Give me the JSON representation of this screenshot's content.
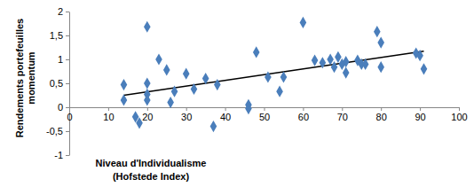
{
  "chart_data": {
    "type": "scatter",
    "xlabel": [
      "Niveau d'Individualisme",
      "(Hofstede Index)"
    ],
    "ylabel": [
      "Rendements portefeuilles",
      "momentum"
    ],
    "x": [
      14,
      14,
      17,
      18,
      20,
      20,
      20,
      20,
      23,
      25,
      26,
      27,
      30,
      32,
      35,
      37,
      38,
      46,
      46,
      48,
      51,
      54,
      55,
      60,
      63,
      65,
      67,
      68,
      69,
      70,
      71,
      71,
      74,
      75,
      76,
      79,
      80,
      80,
      89,
      90,
      91
    ],
    "values": [
      0.47,
      0.15,
      -0.2,
      -0.33,
      1.68,
      0.5,
      0.27,
      0.15,
      1.0,
      0.78,
      0.1,
      0.33,
      0.7,
      0.38,
      0.6,
      -0.4,
      0.47,
      0.05,
      -0.03,
      1.15,
      0.63,
      0.33,
      0.63,
      1.77,
      0.98,
      0.93,
      1.0,
      0.84,
      1.05,
      0.9,
      0.72,
      0.95,
      0.98,
      0.9,
      0.9,
      1.58,
      1.35,
      0.84,
      1.13,
      1.08,
      0.8
    ],
    "trend": {
      "x": [
        14,
        91
      ],
      "values": [
        0.25,
        1.17
      ]
    },
    "color": "#4a7ebb",
    "marker": "diamond",
    "xlim": [
      0,
      100
    ],
    "xticks": [
      0,
      10,
      20,
      30,
      40,
      50,
      60,
      70,
      80,
      90,
      100
    ],
    "ylim": [
      -1,
      2
    ],
    "yticks": [
      -1,
      {
        "value": -0.5,
        "label": "-0,5"
      },
      0,
      {
        "value": 0.5,
        "label": "0,5"
      },
      1,
      {
        "value": 1.5,
        "label": "1,5"
      },
      2
    ],
    "grid": false
  }
}
